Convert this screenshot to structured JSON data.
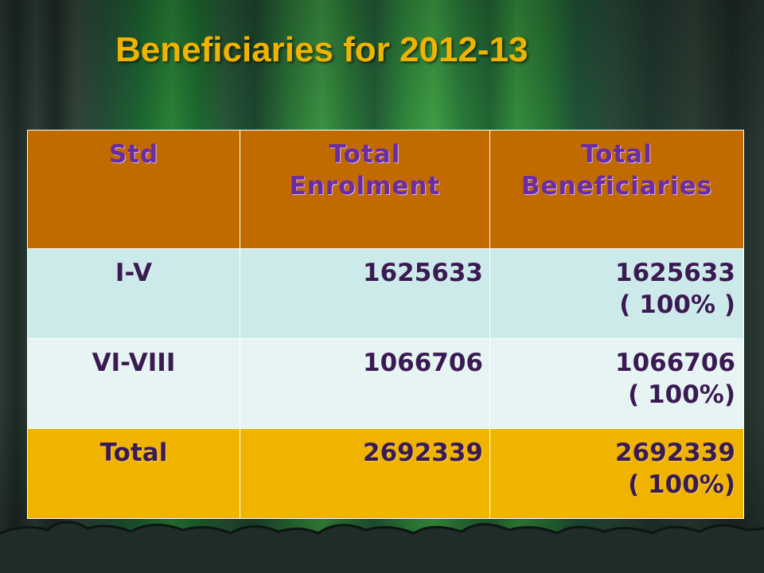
{
  "slide": {
    "title": "Beneficiaries for 2012-13"
  },
  "table": {
    "headers": {
      "std": "Std",
      "enrol_line1": "Total",
      "enrol_line2": "Enrolment",
      "ben_line1": "Total",
      "ben_line2": "Beneficiaries"
    },
    "rows": [
      {
        "std": "I-V",
        "enrolment": "1625633",
        "beneficiaries": "1625633",
        "percent": "( 100% )"
      },
      {
        "std": "VI-VIII",
        "enrolment": "1066706",
        "beneficiaries": "1066706",
        "percent": "( 100%)"
      },
      {
        "std": "Total",
        "enrolment": "2692339",
        "beneficiaries": "2692339",
        "percent": "( 100%)"
      }
    ]
  },
  "colors": {
    "title": "#f0b400",
    "header_bg": "#c06a00",
    "header_text": "#6a2ca0",
    "row1_bg": "#cceaea",
    "row2_bg": "#e6f4f4",
    "total_bg": "#f0b400",
    "body_text": "#3a1a52"
  }
}
